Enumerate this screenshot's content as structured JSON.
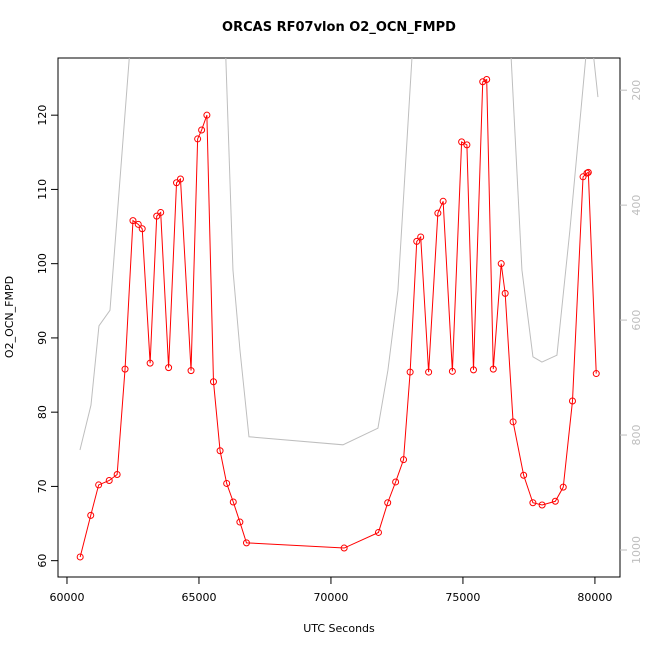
{
  "chart_data": {
    "type": "line",
    "title": "ORCAS RF07vlon O2_OCN_FMPD",
    "x_label": "UTC Seconds",
    "y_label": "O2_OCN_FMPD",
    "xlim": [
      59660,
      80950
    ],
    "xticks": [
      60000,
      65000,
      70000,
      75000,
      80000
    ],
    "ylim": [
      57.8,
      127.7
    ],
    "yticks": [
      60,
      70,
      80,
      90,
      100,
      110,
      120
    ],
    "y2lim": [
      1047,
      144
    ],
    "y2ticks": [
      200,
      400,
      600,
      800,
      1000
    ],
    "series": [
      {
        "color": "#bebebe",
        "axis": "y2",
        "marker": false,
        "x": [
          60492,
          60909,
          61212,
          61629,
          62400,
          66000,
          66288,
          66553,
          66894,
          70455,
          71780,
          72159,
          72538,
          73100,
          76800,
          77235,
          77652,
          77992,
          78561,
          79053,
          79700,
          79900,
          80114
        ],
        "values": [
          826,
          748,
          610,
          583,
          120,
          120,
          513,
          652,
          803,
          817,
          788,
          687,
          548,
          120,
          120,
          513,
          664,
          673,
          661,
          443,
          120,
          120,
          212
        ]
      },
      {
        "color": "#ff0000",
        "axis": "y",
        "marker": true,
        "x": [
          60500,
          60900,
          61200,
          61600,
          61900,
          62200,
          62500,
          62700,
          62850,
          63150,
          63400,
          63550,
          63850,
          64150,
          64300,
          64700,
          64950,
          65100,
          65300,
          65550,
          65800,
          66050,
          66300,
          66550,
          66800,
          70500,
          71800,
          72150,
          72450,
          72750,
          73000,
          73250,
          73400,
          73700,
          74050,
          74250,
          74600,
          74950,
          75150,
          75400,
          75750,
          75900,
          76150,
          76450,
          76600,
          76900,
          77300,
          77650,
          78000,
          78500,
          78800,
          79150,
          79550,
          79700,
          79750,
          80050
        ],
        "values": [
          60.5,
          66.1,
          70.2,
          70.8,
          71.6,
          85.8,
          105.8,
          105.3,
          104.7,
          86.6,
          106.4,
          106.9,
          86.0,
          110.9,
          111.4,
          85.6,
          116.8,
          118.0,
          120.0,
          84.1,
          74.8,
          70.4,
          67.9,
          65.2,
          62.4,
          61.7,
          63.8,
          67.8,
          70.6,
          73.6,
          85.4,
          103.0,
          103.6,
          85.4,
          106.8,
          108.4,
          85.5,
          116.4,
          116.0,
          85.7,
          124.5,
          124.8,
          85.8,
          100.0,
          96.0,
          78.7,
          71.5,
          67.8,
          67.5,
          68.0,
          69.9,
          81.5,
          111.7,
          112.2,
          112.3,
          85.2
        ]
      }
    ]
  }
}
